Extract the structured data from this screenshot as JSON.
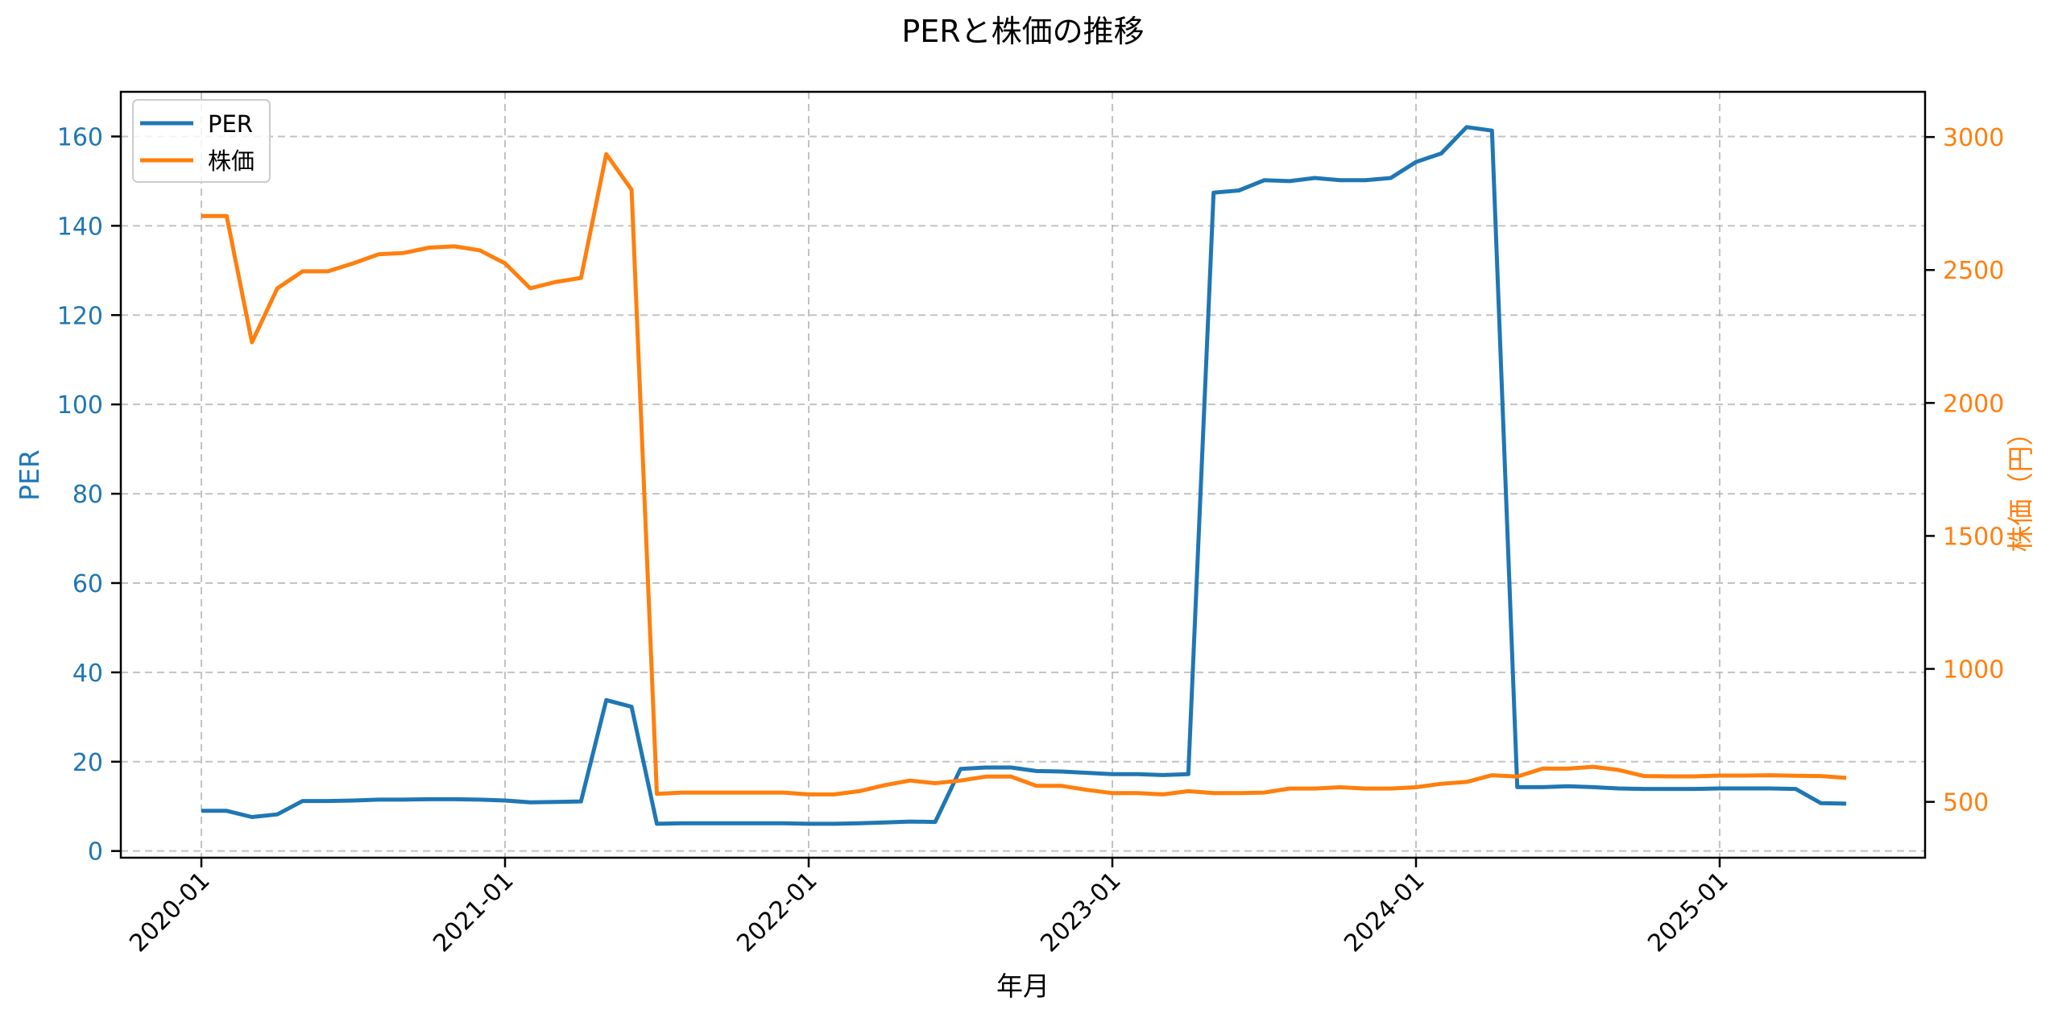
{
  "chart_data": {
    "type": "line",
    "title": "PERと株価の推移",
    "xlabel": "年月",
    "ylabel": "PER",
    "ylabel_right": "株価（円）",
    "x_ticks": [
      "2020-01",
      "2021-01",
      "2022-01",
      "2023-01",
      "2024-01",
      "2025-01"
    ],
    "y_ticks_left": [
      0,
      20,
      40,
      60,
      80,
      100,
      120,
      140,
      160
    ],
    "y_ticks_right": [
      500,
      1000,
      1500,
      2000,
      2500,
      3000
    ],
    "ylim_left": [
      -1.5,
      170
    ],
    "ylim_right": [
      290,
      3170
    ],
    "grid": true,
    "legend_position": "upper left",
    "colors": {
      "PER": "#1f77b4",
      "株価": "#ff7f0e"
    },
    "x": [
      "2020-01",
      "2020-02",
      "2020-03",
      "2020-04",
      "2020-05",
      "2020-06",
      "2020-07",
      "2020-08",
      "2020-09",
      "2020-10",
      "2020-11",
      "2020-12",
      "2021-01",
      "2021-02",
      "2021-03",
      "2021-04",
      "2021-05",
      "2021-06",
      "2021-07",
      "2021-08",
      "2021-09",
      "2021-10",
      "2021-11",
      "2021-12",
      "2022-01",
      "2022-02",
      "2022-03",
      "2022-04",
      "2022-05",
      "2022-06",
      "2022-07",
      "2022-08",
      "2022-09",
      "2022-10",
      "2022-11",
      "2022-12",
      "2023-01",
      "2023-02",
      "2023-03",
      "2023-04",
      "2023-05",
      "2023-06",
      "2023-07",
      "2023-08",
      "2023-09",
      "2023-10",
      "2023-11",
      "2023-12",
      "2024-01",
      "2024-02",
      "2024-03",
      "2024-04",
      "2024-05",
      "2024-06",
      "2024-07",
      "2024-08",
      "2024-09",
      "2024-10",
      "2024-11",
      "2024-12",
      "2025-01",
      "2025-02",
      "2025-03",
      "2025-04",
      "2025-05",
      "2025-06"
    ],
    "series": [
      {
        "name": "PER",
        "axis": "left",
        "values": [
          9.0,
          9.0,
          7.6,
          8.2,
          11.2,
          11.2,
          11.3,
          11.5,
          11.5,
          11.6,
          11.6,
          11.5,
          11.3,
          10.9,
          11.0,
          11.1,
          33.8,
          32.3,
          6.1,
          6.2,
          6.2,
          6.2,
          6.2,
          6.2,
          6.1,
          6.1,
          6.2,
          6.4,
          6.6,
          6.5,
          18.4,
          18.7,
          18.7,
          17.9,
          17.8,
          17.5,
          17.2,
          17.2,
          17.0,
          17.2,
          147.4,
          147.9,
          150.2,
          150.0,
          150.7,
          150.2,
          150.2,
          150.7,
          154.3,
          156.2,
          162.1,
          161.3,
          14.3,
          14.3,
          14.5,
          14.3,
          14.0,
          13.9,
          13.9,
          13.9,
          14.0,
          14.0,
          14.0,
          13.9,
          10.7,
          10.6
        ]
      },
      {
        "name": "株価",
        "axis": "right",
        "values": [
          2703,
          2703,
          2228,
          2431,
          2495,
          2495,
          2525,
          2559,
          2564,
          2584,
          2589,
          2574,
          2525,
          2431,
          2455,
          2470,
          2936,
          2802,
          530,
          535,
          535,
          535,
          535,
          535,
          528,
          528,
          540,
          563,
          580,
          570,
          580,
          595,
          595,
          560,
          560,
          545,
          533,
          533,
          528,
          540,
          533,
          533,
          535,
          550,
          550,
          555,
          550,
          550,
          555,
          568,
          575,
          600,
          595,
          625,
          625,
          632,
          620,
          597,
          596,
          596,
          599,
          599,
          600,
          598,
          597,
          590
        ]
      }
    ]
  }
}
